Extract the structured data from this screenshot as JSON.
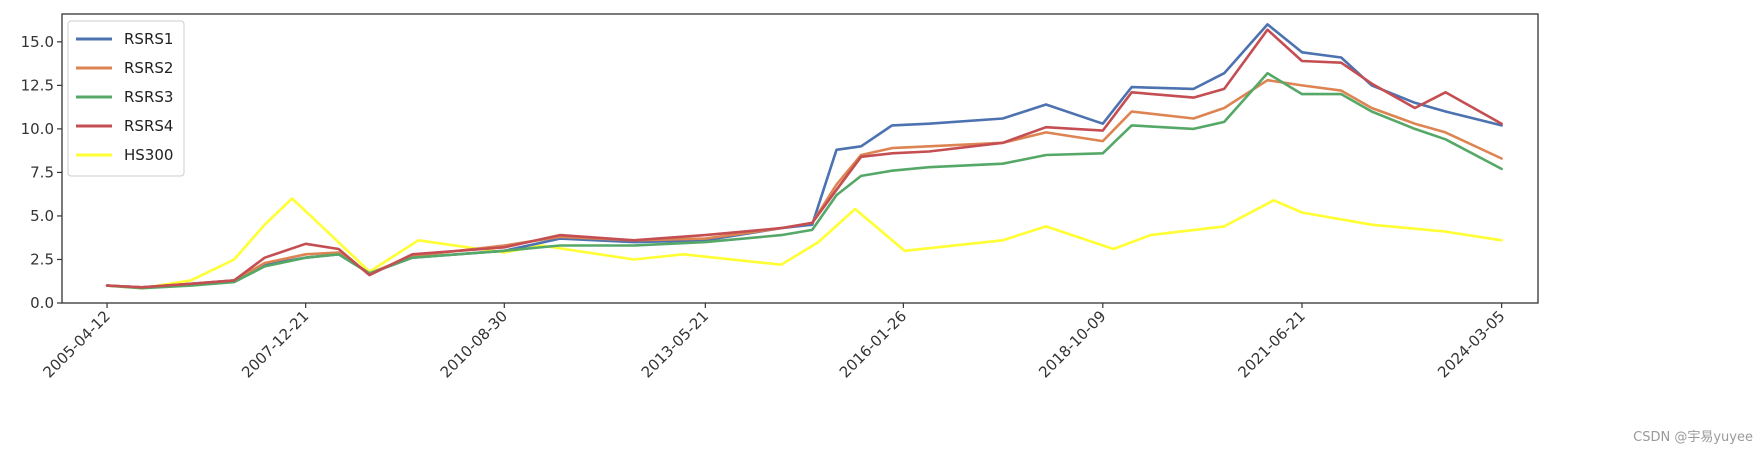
{
  "chart_data": {
    "type": "line",
    "title": "",
    "xlabel": "",
    "ylabel": "",
    "x_tick_labels": [
      "2005-04-12",
      "2007-12-21",
      "2010-08-30",
      "2013-05-21",
      "2016-01-26",
      "2018-10-09",
      "2021-06-21",
      "2024-03-05"
    ],
    "y_ticks": [
      0.0,
      2.5,
      5.0,
      7.5,
      10.0,
      12.5,
      15.0
    ],
    "y_tick_labels": [
      "0.0",
      "2.5",
      "5.0",
      "7.5",
      "10.0",
      "12.5",
      "15.0"
    ],
    "xlim": [
      "2004-09-01",
      "2024-09-01"
    ],
    "ylim": [
      0,
      16.6
    ],
    "grid": false,
    "legend_position": "top-left",
    "series": [
      {
        "name": "RSRS1",
        "color": "#4c72b0",
        "points": [
          [
            "2005-04-12",
            1.0
          ],
          [
            "2005-10-01",
            0.9
          ],
          [
            "2006-06-01",
            1.1
          ],
          [
            "2007-01-01",
            1.3
          ],
          [
            "2007-06-01",
            2.2
          ],
          [
            "2007-12-21",
            2.6
          ],
          [
            "2008-06-01",
            2.8
          ],
          [
            "2008-11-01",
            1.7
          ],
          [
            "2009-06-01",
            2.6
          ],
          [
            "2010-08-30",
            3.0
          ],
          [
            "2011-06-01",
            3.7
          ],
          [
            "2012-06-01",
            3.5
          ],
          [
            "2013-05-21",
            3.6
          ],
          [
            "2014-06-01",
            4.3
          ],
          [
            "2014-11-01",
            4.5
          ],
          [
            "2015-03-01",
            8.8
          ],
          [
            "2015-07-01",
            9.0
          ],
          [
            "2015-12-01",
            10.2
          ],
          [
            "2016-06-01",
            10.3
          ],
          [
            "2017-06-01",
            10.6
          ],
          [
            "2018-01-01",
            11.4
          ],
          [
            "2018-10-09",
            10.3
          ],
          [
            "2019-03-01",
            12.4
          ],
          [
            "2020-01-01",
            12.3
          ],
          [
            "2020-06-01",
            13.2
          ],
          [
            "2021-01-01",
            16.0
          ],
          [
            "2021-06-21",
            14.4
          ],
          [
            "2022-01-01",
            14.1
          ],
          [
            "2022-06-01",
            12.5
          ],
          [
            "2023-01-01",
            11.5
          ],
          [
            "2023-06-01",
            11.0
          ],
          [
            "2024-03-05",
            10.2
          ]
        ]
      },
      {
        "name": "RSRS2",
        "color": "#dd8452",
        "points": [
          [
            "2005-04-12",
            1.0
          ],
          [
            "2005-10-01",
            0.9
          ],
          [
            "2006-06-01",
            1.1
          ],
          [
            "2007-01-01",
            1.3
          ],
          [
            "2007-06-01",
            2.3
          ],
          [
            "2007-12-21",
            2.8
          ],
          [
            "2008-06-01",
            2.9
          ],
          [
            "2008-11-01",
            1.7
          ],
          [
            "2009-06-01",
            2.7
          ],
          [
            "2010-08-30",
            3.3
          ],
          [
            "2011-06-01",
            3.8
          ],
          [
            "2012-06-01",
            3.6
          ],
          [
            "2013-05-21",
            3.7
          ],
          [
            "2014-06-01",
            4.3
          ],
          [
            "2014-11-01",
            4.6
          ],
          [
            "2015-03-01",
            6.8
          ],
          [
            "2015-07-01",
            8.5
          ],
          [
            "2015-12-01",
            8.9
          ],
          [
            "2016-06-01",
            9.0
          ],
          [
            "2017-06-01",
            9.2
          ],
          [
            "2018-01-01",
            9.8
          ],
          [
            "2018-10-09",
            9.3
          ],
          [
            "2019-03-01",
            11.0
          ],
          [
            "2020-01-01",
            10.6
          ],
          [
            "2020-06-01",
            11.2
          ],
          [
            "2021-01-01",
            12.8
          ],
          [
            "2021-06-21",
            12.5
          ],
          [
            "2022-01-01",
            12.2
          ],
          [
            "2022-06-01",
            11.2
          ],
          [
            "2023-01-01",
            10.3
          ],
          [
            "2023-06-01",
            9.8
          ],
          [
            "2024-03-05",
            8.3
          ]
        ]
      },
      {
        "name": "RSRS3",
        "color": "#55a868",
        "points": [
          [
            "2005-04-12",
            1.0
          ],
          [
            "2005-10-01",
            0.85
          ],
          [
            "2006-06-01",
            1.0
          ],
          [
            "2007-01-01",
            1.2
          ],
          [
            "2007-06-01",
            2.1
          ],
          [
            "2007-12-21",
            2.6
          ],
          [
            "2008-06-01",
            2.8
          ],
          [
            "2008-11-01",
            1.7
          ],
          [
            "2009-06-01",
            2.6
          ],
          [
            "2010-08-30",
            3.0
          ],
          [
            "2011-06-01",
            3.3
          ],
          [
            "2012-06-01",
            3.3
          ],
          [
            "2013-05-21",
            3.5
          ],
          [
            "2014-06-01",
            3.9
          ],
          [
            "2014-11-01",
            4.2
          ],
          [
            "2015-03-01",
            6.2
          ],
          [
            "2015-07-01",
            7.3
          ],
          [
            "2015-12-01",
            7.6
          ],
          [
            "2016-06-01",
            7.8
          ],
          [
            "2017-06-01",
            8.0
          ],
          [
            "2018-01-01",
            8.5
          ],
          [
            "2018-10-09",
            8.6
          ],
          [
            "2019-03-01",
            10.2
          ],
          [
            "2020-01-01",
            10.0
          ],
          [
            "2020-06-01",
            10.4
          ],
          [
            "2021-01-01",
            13.2
          ],
          [
            "2021-06-21",
            12.0
          ],
          [
            "2022-01-01",
            12.0
          ],
          [
            "2022-06-01",
            11.0
          ],
          [
            "2023-01-01",
            10.0
          ],
          [
            "2023-06-01",
            9.4
          ],
          [
            "2024-03-05",
            7.7
          ]
        ]
      },
      {
        "name": "RSRS4",
        "color": "#c44e52",
        "points": [
          [
            "2005-04-12",
            1.0
          ],
          [
            "2005-10-01",
            0.9
          ],
          [
            "2006-06-01",
            1.1
          ],
          [
            "2007-01-01",
            1.3
          ],
          [
            "2007-06-01",
            2.6
          ],
          [
            "2007-12-21",
            3.4
          ],
          [
            "2008-06-01",
            3.1
          ],
          [
            "2008-11-01",
            1.6
          ],
          [
            "2009-06-01",
            2.8
          ],
          [
            "2010-08-30",
            3.2
          ],
          [
            "2011-06-01",
            3.9
          ],
          [
            "2012-06-01",
            3.6
          ],
          [
            "2013-05-21",
            3.9
          ],
          [
            "2014-06-01",
            4.3
          ],
          [
            "2014-11-01",
            4.6
          ],
          [
            "2015-03-01",
            6.5
          ],
          [
            "2015-07-01",
            8.4
          ],
          [
            "2015-12-01",
            8.6
          ],
          [
            "2016-06-01",
            8.7
          ],
          [
            "2017-06-01",
            9.2
          ],
          [
            "2018-01-01",
            10.1
          ],
          [
            "2018-10-09",
            9.9
          ],
          [
            "2019-03-01",
            12.1
          ],
          [
            "2020-01-01",
            11.8
          ],
          [
            "2020-06-01",
            12.3
          ],
          [
            "2021-01-01",
            15.7
          ],
          [
            "2021-06-21",
            13.9
          ],
          [
            "2022-01-01",
            13.8
          ],
          [
            "2022-06-01",
            12.6
          ],
          [
            "2023-01-01",
            11.2
          ],
          [
            "2023-06-01",
            12.1
          ],
          [
            "2024-03-05",
            10.3
          ]
        ]
      },
      {
        "name": "HS300",
        "color": "#ffff33",
        "points": [
          [
            "2005-04-12",
            1.0
          ],
          [
            "2005-10-01",
            0.85
          ],
          [
            "2006-06-01",
            1.3
          ],
          [
            "2007-01-01",
            2.5
          ],
          [
            "2007-06-01",
            4.5
          ],
          [
            "2007-10-15",
            6.0
          ],
          [
            "2008-03-01",
            4.5
          ],
          [
            "2008-11-01",
            1.8
          ],
          [
            "2009-07-01",
            3.6
          ],
          [
            "2010-08-30",
            2.9
          ],
          [
            "2011-03-01",
            3.3
          ],
          [
            "2012-06-01",
            2.5
          ],
          [
            "2013-02-01",
            2.8
          ],
          [
            "2014-06-01",
            2.2
          ],
          [
            "2014-12-01",
            3.5
          ],
          [
            "2015-06-01",
            5.4
          ],
          [
            "2016-02-01",
            3.0
          ],
          [
            "2017-06-01",
            3.6
          ],
          [
            "2018-01-01",
            4.4
          ],
          [
            "2018-12-01",
            3.1
          ],
          [
            "2019-06-01",
            3.9
          ],
          [
            "2020-06-01",
            4.4
          ],
          [
            "2021-02-01",
            5.9
          ],
          [
            "2021-06-21",
            5.2
          ],
          [
            "2022-06-01",
            4.5
          ],
          [
            "2023-06-01",
            4.1
          ],
          [
            "2024-03-05",
            3.6
          ]
        ]
      }
    ]
  },
  "watermark": "CSDN @宇易yuyee"
}
